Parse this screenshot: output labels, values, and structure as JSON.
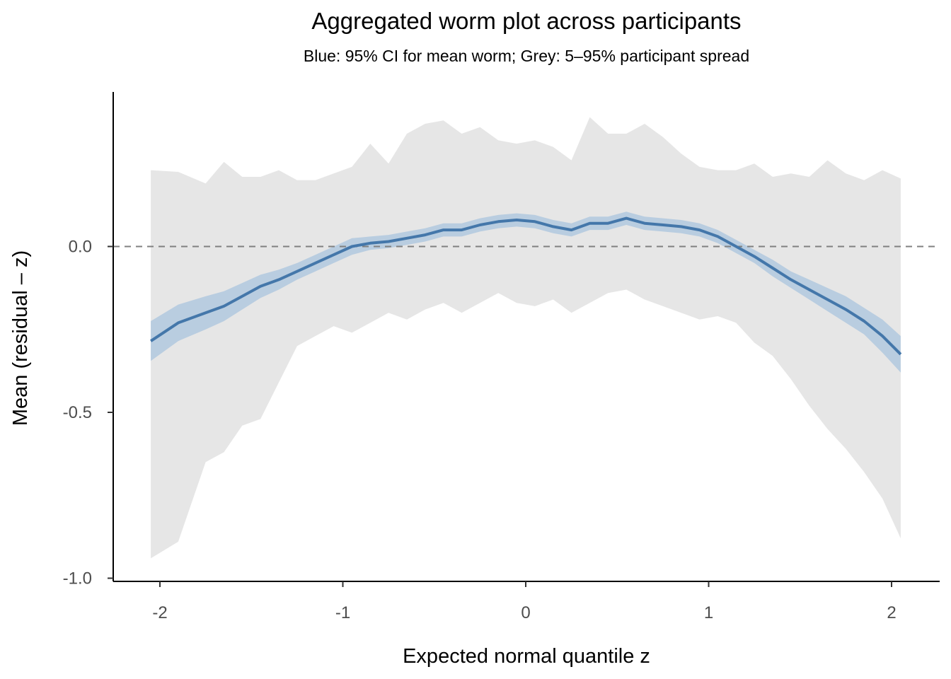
{
  "chart_data": {
    "type": "area",
    "title": "Aggregated worm plot across participants",
    "subtitle": "Blue: 95% CI for mean worm; Grey: 5–95% participant spread",
    "xlabel": "Expected normal quantile z",
    "ylabel": "Mean (residual – z)",
    "xlim": [
      -2.25,
      2.25
    ],
    "ylim": [
      -1.0,
      0.45
    ],
    "x_ticks": [
      -2,
      -1,
      0,
      1,
      2
    ],
    "x_tick_labels": [
      "-2",
      "-1",
      "0",
      "1",
      "2"
    ],
    "y_ticks": [
      -1.0,
      -0.5,
      0.0
    ],
    "y_tick_labels": [
      "-1.0",
      "-0.5",
      "0.0"
    ],
    "reference_line": {
      "y": 0.0,
      "style": "dashed",
      "color": "#808080"
    },
    "grid": false,
    "legend": "none",
    "colors": {
      "mean_line": "#4477aa",
      "ci_band": "#b9cde0",
      "spread_band": "#e6e6e6"
    },
    "x": [
      -2.05,
      -1.9,
      -1.75,
      -1.65,
      -1.55,
      -1.45,
      -1.35,
      -1.25,
      -1.15,
      -1.05,
      -0.95,
      -0.85,
      -0.75,
      -0.65,
      -0.55,
      -0.45,
      -0.35,
      -0.25,
      -0.15,
      -0.05,
      0.05,
      0.15,
      0.25,
      0.35,
      0.45,
      0.55,
      0.65,
      0.75,
      0.85,
      0.95,
      1.05,
      1.15,
      1.25,
      1.35,
      1.45,
      1.55,
      1.65,
      1.75,
      1.85,
      1.95,
      2.05
    ],
    "series": [
      {
        "values": [
          -0.285,
          -0.23,
          -0.2,
          -0.18,
          -0.15,
          -0.12,
          -0.1,
          -0.075,
          -0.05,
          -0.025,
          0.0,
          0.01,
          0.015,
          0.025,
          0.035,
          0.05,
          0.05,
          0.065,
          0.075,
          0.08,
          0.075,
          0.06,
          0.05,
          0.07,
          0.07,
          0.085,
          0.07,
          0.065,
          0.06,
          0.05,
          0.03,
          0.0,
          -0.03,
          -0.065,
          -0.1,
          -0.13,
          -0.16,
          -0.19,
          -0.225,
          -0.27,
          -0.325
        ]
      }
    ],
    "ci_band": {
      "lower": [
        -0.345,
        -0.285,
        -0.25,
        -0.225,
        -0.19,
        -0.155,
        -0.13,
        -0.1,
        -0.075,
        -0.05,
        -0.025,
        -0.01,
        -0.005,
        0.005,
        0.015,
        0.03,
        0.03,
        0.045,
        0.055,
        0.06,
        0.055,
        0.04,
        0.03,
        0.05,
        0.05,
        0.065,
        0.05,
        0.045,
        0.04,
        0.03,
        0.01,
        -0.02,
        -0.05,
        -0.09,
        -0.125,
        -0.16,
        -0.195,
        -0.23,
        -0.265,
        -0.32,
        -0.38
      ],
      "upper": [
        -0.225,
        -0.175,
        -0.15,
        -0.135,
        -0.11,
        -0.085,
        -0.07,
        -0.05,
        -0.025,
        -0.0,
        0.025,
        0.03,
        0.035,
        0.045,
        0.055,
        0.07,
        0.07,
        0.085,
        0.095,
        0.1,
        0.095,
        0.08,
        0.07,
        0.09,
        0.09,
        0.105,
        0.09,
        0.085,
        0.08,
        0.07,
        0.05,
        0.02,
        -0.01,
        -0.04,
        -0.075,
        -0.1,
        -0.125,
        -0.15,
        -0.185,
        -0.22,
        -0.27
      ]
    },
    "spread_band": {
      "lower": [
        -0.94,
        -0.89,
        -0.65,
        -0.62,
        -0.54,
        -0.52,
        -0.41,
        -0.3,
        -0.27,
        -0.24,
        -0.26,
        -0.23,
        -0.2,
        -0.22,
        -0.19,
        -0.17,
        -0.2,
        -0.17,
        -0.14,
        -0.17,
        -0.18,
        -0.16,
        -0.2,
        -0.17,
        -0.14,
        -0.13,
        -0.16,
        -0.18,
        -0.2,
        -0.22,
        -0.21,
        -0.23,
        -0.29,
        -0.33,
        -0.4,
        -0.48,
        -0.55,
        -0.61,
        -0.68,
        -0.76,
        -0.88
      ],
      "upper": [
        0.23,
        0.225,
        0.19,
        0.255,
        0.21,
        0.21,
        0.23,
        0.2,
        0.2,
        0.22,
        0.24,
        0.31,
        0.25,
        0.34,
        0.37,
        0.38,
        0.34,
        0.36,
        0.32,
        0.31,
        0.32,
        0.3,
        0.26,
        0.39,
        0.34,
        0.34,
        0.37,
        0.33,
        0.28,
        0.24,
        0.23,
        0.23,
        0.25,
        0.21,
        0.22,
        0.21,
        0.26,
        0.22,
        0.2,
        0.23,
        0.205
      ]
    }
  }
}
